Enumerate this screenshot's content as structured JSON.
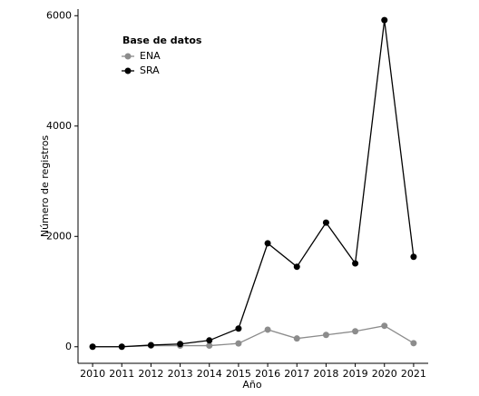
{
  "chart_data": {
    "type": "line",
    "x_label": "Año",
    "y_label": "Número de registros",
    "legend_title": "Base de datos",
    "legend_position": "upper left",
    "x": [
      2010,
      2011,
      2012,
      2013,
      2014,
      2015,
      2016,
      2017,
      2018,
      2019,
      2020,
      2021
    ],
    "series": [
      {
        "name": "ENA",
        "color": "#8c8c8c",
        "values": [
          0,
          0,
          20,
          20,
          20,
          60,
          310,
          150,
          215,
          280,
          380,
          65
        ]
      },
      {
        "name": "SRA",
        "color": "#000000",
        "values": [
          0,
          0,
          30,
          50,
          115,
          330,
          1875,
          1450,
          2250,
          1510,
          5920,
          1630
        ]
      }
    ],
    "xlim": [
      2009.5,
      2021.5
    ],
    "xticks": [
      2010,
      2011,
      2012,
      2013,
      2014,
      2015,
      2016,
      2017,
      2018,
      2019,
      2020,
      2021
    ],
    "ylim": [
      -300,
      6120
    ],
    "yticks": [
      0,
      2000,
      4000,
      6000
    ],
    "grid": false
  }
}
